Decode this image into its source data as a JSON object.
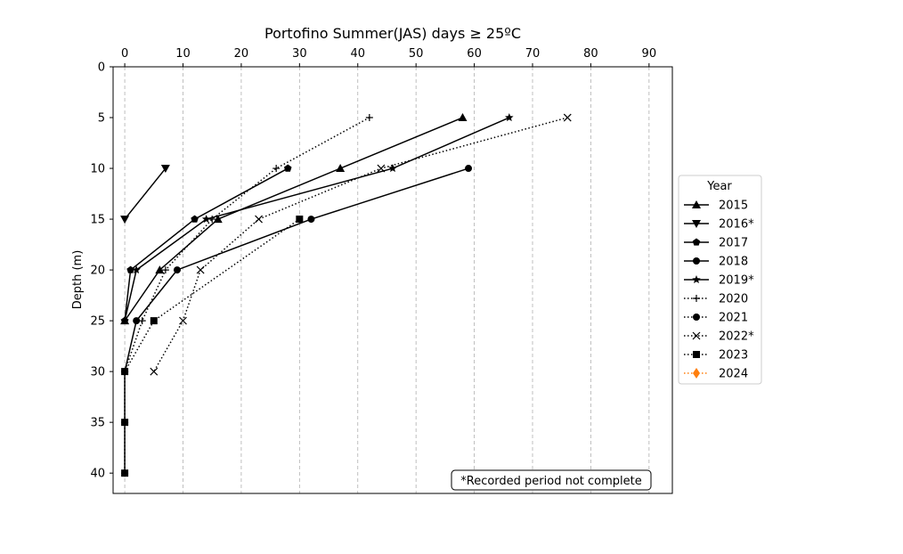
{
  "chart_data": {
    "type": "line",
    "title": "Portofino Summer(JAS) days ≥ 25ºC",
    "xlabel": "",
    "ylabel": "Depth (m)",
    "xlim": [
      -2,
      94
    ],
    "ylim": [
      42,
      0
    ],
    "x_axis_position": "top",
    "y_inverted": true,
    "x_ticks": [
      0,
      10,
      20,
      30,
      40,
      50,
      60,
      70,
      80,
      90
    ],
    "y_ticks": [
      0,
      5,
      10,
      15,
      20,
      25,
      30,
      35,
      40
    ],
    "grid": "vertical dashed",
    "legend_title": "Year",
    "legend_position": "right",
    "note": "*Recorded period not complete",
    "series": [
      {
        "name": "2015",
        "style": "solid",
        "marker": "triangle-up",
        "color": "#000000",
        "points": [
          {
            "x": 58,
            "y": 5
          },
          {
            "x": 37,
            "y": 10
          },
          {
            "x": 16,
            "y": 15
          },
          {
            "x": 6,
            "y": 20
          },
          {
            "x": 0,
            "y": 25
          }
        ]
      },
      {
        "name": "2016*",
        "style": "solid",
        "marker": "triangle-down",
        "color": "#000000",
        "points": [
          {
            "x": 7,
            "y": 10
          },
          {
            "x": 0,
            "y": 15
          }
        ]
      },
      {
        "name": "2017",
        "style": "solid",
        "marker": "pentagon",
        "color": "#000000",
        "points": [
          {
            "x": 28,
            "y": 10
          },
          {
            "x": 12,
            "y": 15
          },
          {
            "x": 1,
            "y": 20
          },
          {
            "x": 0,
            "y": 25
          }
        ]
      },
      {
        "name": "2018",
        "style": "solid",
        "marker": "circle",
        "color": "#000000",
        "points": [
          {
            "x": 59,
            "y": 10
          },
          {
            "x": 32,
            "y": 15
          },
          {
            "x": 9,
            "y": 20
          },
          {
            "x": 2,
            "y": 25
          },
          {
            "x": 0,
            "y": 30
          },
          {
            "x": 0,
            "y": 35
          },
          {
            "x": 0,
            "y": 40
          }
        ]
      },
      {
        "name": "2019*",
        "style": "solid",
        "marker": "star",
        "color": "#000000",
        "points": [
          {
            "x": 66,
            "y": 5
          },
          {
            "x": 46,
            "y": 10
          },
          {
            "x": 14,
            "y": 15
          },
          {
            "x": 2,
            "y": 20
          },
          {
            "x": 0,
            "y": 25
          }
        ]
      },
      {
        "name": "2020",
        "style": "dotted",
        "marker": "plus",
        "color": "#000000",
        "points": [
          {
            "x": 42,
            "y": 5
          },
          {
            "x": 26,
            "y": 10
          },
          {
            "x": 15,
            "y": 15
          },
          {
            "x": 7,
            "y": 20
          },
          {
            "x": 3,
            "y": 25
          },
          {
            "x": 0,
            "y": 30
          }
        ]
      },
      {
        "name": "2021",
        "style": "dotted",
        "marker": "circle",
        "color": "#000000",
        "points": []
      },
      {
        "name": "2022*",
        "style": "dotted",
        "marker": "x",
        "color": "#000000",
        "points": [
          {
            "x": 76,
            "y": 5
          },
          {
            "x": 44,
            "y": 10
          },
          {
            "x": 23,
            "y": 15
          },
          {
            "x": 13,
            "y": 20
          },
          {
            "x": 10,
            "y": 25
          },
          {
            "x": 5,
            "y": 30
          }
        ]
      },
      {
        "name": "2023",
        "style": "dotted",
        "marker": "square",
        "color": "#000000",
        "points": [
          {
            "x": 30,
            "y": 15
          },
          {
            "x": 5,
            "y": 25
          },
          {
            "x": 0,
            "y": 30
          },
          {
            "x": 0,
            "y": 35
          },
          {
            "x": 0,
            "y": 40
          }
        ]
      },
      {
        "name": "2024",
        "style": "dotted",
        "marker": "diamond",
        "color": "#ff7f0e",
        "points": []
      }
    ]
  }
}
